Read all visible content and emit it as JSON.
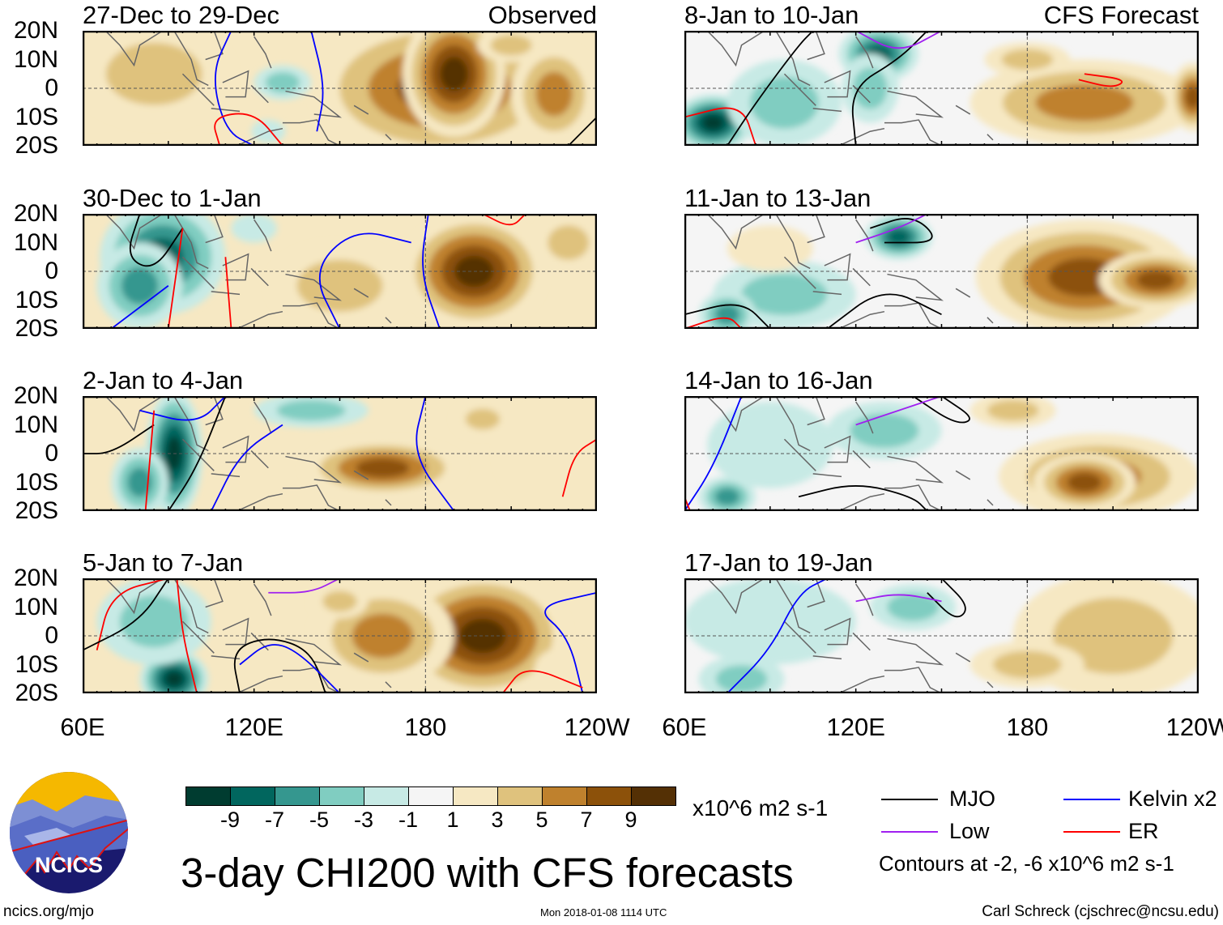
{
  "panels": [
    {
      "title": "27-Dec to 29-Dec",
      "tag": "Observed"
    },
    {
      "title": "30-Dec to 1-Jan",
      "tag": ""
    },
    {
      "title": "2-Jan to 4-Jan",
      "tag": ""
    },
    {
      "title": "5-Jan to 7-Jan",
      "tag": ""
    },
    {
      "title": "8-Jan to 10-Jan",
      "tag": "CFS Forecast"
    },
    {
      "title": "11-Jan to 13-Jan",
      "tag": ""
    },
    {
      "title": "14-Jan to 16-Jan",
      "tag": ""
    },
    {
      "title": "17-Jan to 19-Jan",
      "tag": ""
    }
  ],
  "lat_labels": [
    "20N",
    "10N",
    "0",
    "10S",
    "20S"
  ],
  "lon_labels": [
    "60E",
    "120E",
    "180",
    "120W"
  ],
  "chart_data": {
    "type": "heatmap",
    "title": "3-day CHI200 with CFS forecasts",
    "units": "x10^6 m2 s-1",
    "lon_range": [
      60,
      240
    ],
    "lat_range": [
      -20,
      20
    ],
    "colorbar": {
      "ticks": [
        "-9",
        "-7",
        "-5",
        "-3",
        "-1",
        "1",
        "3",
        "5",
        "7",
        "9"
      ],
      "colors": [
        "#003c30",
        "#01665e",
        "#35978f",
        "#80cdc1",
        "#c7eae5",
        "#f5f5f5",
        "#f6e8c3",
        "#dfc27d",
        "#bf812d",
        "#8c510a",
        "#543005"
      ]
    },
    "contour_legend": [
      {
        "label": "MJO",
        "color": "#000000"
      },
      {
        "label": "Kelvin x2",
        "color": "#0000ff"
      },
      {
        "label": "Low",
        "color": "#a020f0"
      },
      {
        "label": "ER",
        "color": "#ff0000"
      }
    ],
    "contour_note": "Contours at -2, -6 x10^6 m2 s-1"
  },
  "footer": {
    "url": "ncics.org/mjo",
    "timestamp": "Mon 2018-01-08 1114 UTC",
    "author": "Carl Schreck (cjschrec@ncsu.edu)",
    "logo_text": "NCICS"
  }
}
